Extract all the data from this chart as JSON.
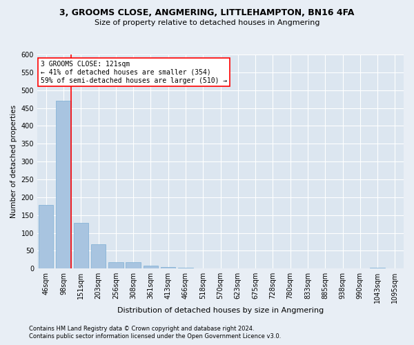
{
  "title": "3, GROOMS CLOSE, ANGMERING, LITTLEHAMPTON, BN16 4FA",
  "subtitle": "Size of property relative to detached houses in Angmering",
  "xlabel": "Distribution of detached houses by size in Angmering",
  "ylabel": "Number of detached properties",
  "bar_labels": [
    "46sqm",
    "98sqm",
    "151sqm",
    "203sqm",
    "256sqm",
    "308sqm",
    "361sqm",
    "413sqm",
    "466sqm",
    "518sqm",
    "570sqm",
    "623sqm",
    "675sqm",
    "728sqm",
    "780sqm",
    "833sqm",
    "885sqm",
    "938sqm",
    "990sqm",
    "1043sqm",
    "1095sqm"
  ],
  "bar_values": [
    178,
    470,
    128,
    68,
    18,
    18,
    8,
    5,
    3,
    0,
    0,
    0,
    0,
    0,
    0,
    0,
    0,
    0,
    0,
    3,
    0
  ],
  "bar_color": "#a8c4e0",
  "bar_edge_color": "#7aadd4",
  "vline_color": "red",
  "vline_x_index": 1,
  "ylim": [
    0,
    600
  ],
  "yticks": [
    0,
    50,
    100,
    150,
    200,
    250,
    300,
    350,
    400,
    450,
    500,
    550,
    600
  ],
  "annotation_text": "3 GROOMS CLOSE: 121sqm\n← 41% of detached houses are smaller (354)\n59% of semi-detached houses are larger (510) →",
  "annotation_box_color": "white",
  "annotation_box_edge_color": "red",
  "footnote1": "Contains HM Land Registry data © Crown copyright and database right 2024.",
  "footnote2": "Contains public sector information licensed under the Open Government Licence v3.0.",
  "bg_color": "#e8eef5",
  "plot_bg_color": "#dce6f0",
  "grid_color": "white",
  "title_fontsize": 9,
  "subtitle_fontsize": 8,
  "xlabel_fontsize": 8,
  "ylabel_fontsize": 7.5,
  "tick_fontsize": 7,
  "annotation_fontsize": 7,
  "footnote_fontsize": 6
}
